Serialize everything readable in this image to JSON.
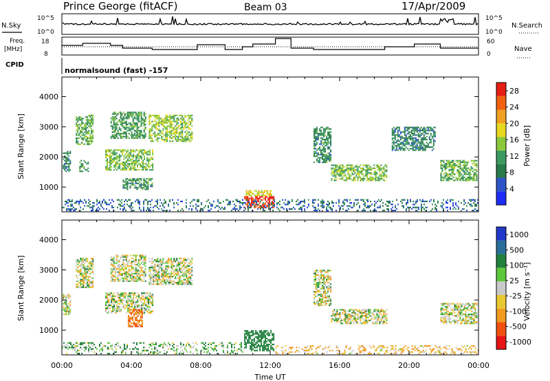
{
  "header": {
    "title": "Prince George (fitACF)",
    "beam": "Beam 03",
    "date": "17/Apr/2009"
  },
  "status": {
    "nsky_label": "N.Sky",
    "nsky_tick_hi": "10^5",
    "nsky_tick_lo": "10^0",
    "nsearch_label": "N.Search",
    "nsearch_tick_hi": "10^5",
    "nsearch_tick_lo": "10^0",
    "freq_label_1": "Freq.",
    "freq_label_2": "[MHz]",
    "freq_tick_hi": "18",
    "freq_tick_lo": "8",
    "nave_label": "Nave",
    "nave_tick_hi": "60",
    "nave_tick_lo": "0",
    "cpid_label": "CPID",
    "cpid_text": "normalsound (fast) -157"
  },
  "colors": {
    "power": [
      "#1e2cf5",
      "#2d55c8",
      "#287a4a",
      "#3c9a60",
      "#8cc83c",
      "#e8d820",
      "#f0a020",
      "#f06010",
      "#e61e14"
    ],
    "velocity": [
      "#2238c8",
      "#2a6e9a",
      "#20803c",
      "#5ec83c",
      "#c8c8c8",
      "#e8c830",
      "#f09a20",
      "#f05010",
      "#e61414"
    ]
  },
  "chart_data": [
    {
      "type": "heatmap",
      "name": "power",
      "xlabel": "",
      "ylabel": "Slant Range [km]",
      "x_ticks": [
        "00:00",
        "04:00",
        "08:00",
        "12:00",
        "16:00",
        "20:00",
        "00:00"
      ],
      "y_ticks": [
        1000,
        2000,
        3000,
        4000
      ],
      "xlim_hours": [
        0,
        24
      ],
      "ylim_km": [
        180,
        4650
      ],
      "colorbar_label": "Power [dB]",
      "colorbar_ticks": [
        4,
        8,
        12,
        16,
        20,
        24,
        28
      ],
      "colorbar_range": [
        0,
        30
      ],
      "regions": [
        {
          "t": [
            0.05,
            0.5
          ],
          "r": [
            1500,
            2200
          ],
          "v": 9
        },
        {
          "t": [
            0.8,
            1.8
          ],
          "r": [
            2400,
            3400
          ],
          "v": 13
        },
        {
          "t": [
            1.0,
            1.5
          ],
          "r": [
            1500,
            1900
          ],
          "v": 11
        },
        {
          "t": [
            2.5,
            5.2
          ],
          "r": [
            1550,
            2250
          ],
          "v": 14
        },
        {
          "t": [
            2.8,
            4.8
          ],
          "r": [
            2600,
            3500
          ],
          "v": 11
        },
        {
          "t": [
            3.5,
            5.2
          ],
          "r": [
            900,
            1300
          ],
          "v": 10
        },
        {
          "t": [
            5.0,
            7.5
          ],
          "r": [
            2500,
            3400
          ],
          "v": 15
        },
        {
          "t": [
            10.5,
            12.2
          ],
          "r": [
            300,
            700
          ],
          "v": 28
        },
        {
          "t": [
            10.6,
            12.1
          ],
          "r": [
            700,
            900
          ],
          "v": 18
        },
        {
          "t": [
            14.5,
            15.5
          ],
          "r": [
            1800,
            3000
          ],
          "v": 10
        },
        {
          "t": [
            15.5,
            18.7
          ],
          "r": [
            1200,
            1750
          ],
          "v": 14
        },
        {
          "t": [
            19.0,
            21.5
          ],
          "r": [
            2200,
            3000
          ],
          "v": 9
        },
        {
          "t": [
            21.8,
            23.9
          ],
          "r": [
            1200,
            1900
          ],
          "v": 13
        },
        {
          "t": [
            0.0,
            24.0
          ],
          "r": [
            200,
            600
          ],
          "v": 7
        }
      ]
    },
    {
      "type": "heatmap",
      "name": "velocity",
      "xlabel": "Time UT",
      "ylabel": "Slant Range [km]",
      "x_ticks": [
        "00:00",
        "04:00",
        "08:00",
        "12:00",
        "16:00",
        "20:00",
        "00:00"
      ],
      "y_ticks": [
        1000,
        2000,
        3000,
        4000
      ],
      "xlim_hours": [
        0,
        24
      ],
      "ylim_km": [
        180,
        4650
      ],
      "colorbar_label": "Velocity [m s⁻¹]",
      "colorbar_ticks": [
        1000,
        500,
        100,
        25,
        -25,
        -100,
        -500,
        -1000
      ],
      "regions": [
        {
          "t": [
            0.05,
            0.5
          ],
          "r": [
            1500,
            2200
          ],
          "v": 0
        },
        {
          "t": [
            0.8,
            1.8
          ],
          "r": [
            2400,
            3400
          ],
          "v": 0
        },
        {
          "t": [
            2.5,
            5.2
          ],
          "r": [
            1550,
            2250
          ],
          "v": 0
        },
        {
          "t": [
            2.8,
            4.8
          ],
          "r": [
            2600,
            3500
          ],
          "v": 0
        },
        {
          "t": [
            3.8,
            4.6
          ],
          "r": [
            1100,
            1700
          ],
          "v": -300
        },
        {
          "t": [
            5.0,
            7.5
          ],
          "r": [
            2500,
            3400
          ],
          "v": 0
        },
        {
          "t": [
            10.5,
            12.2
          ],
          "r": [
            300,
            1000
          ],
          "v": 150
        },
        {
          "t": [
            14.5,
            15.5
          ],
          "r": [
            1800,
            3000
          ],
          "v": 0
        },
        {
          "t": [
            15.5,
            18.7
          ],
          "r": [
            1200,
            1700
          ],
          "v": 0
        },
        {
          "t": [
            21.8,
            23.9
          ],
          "r": [
            1200,
            1900
          ],
          "v": 0
        },
        {
          "t": [
            12.3,
            24.0
          ],
          "r": [
            200,
            500
          ],
          "v": -60
        },
        {
          "t": [
            0.0,
            10.5
          ],
          "r": [
            200,
            600
          ],
          "v": 50
        }
      ]
    }
  ]
}
